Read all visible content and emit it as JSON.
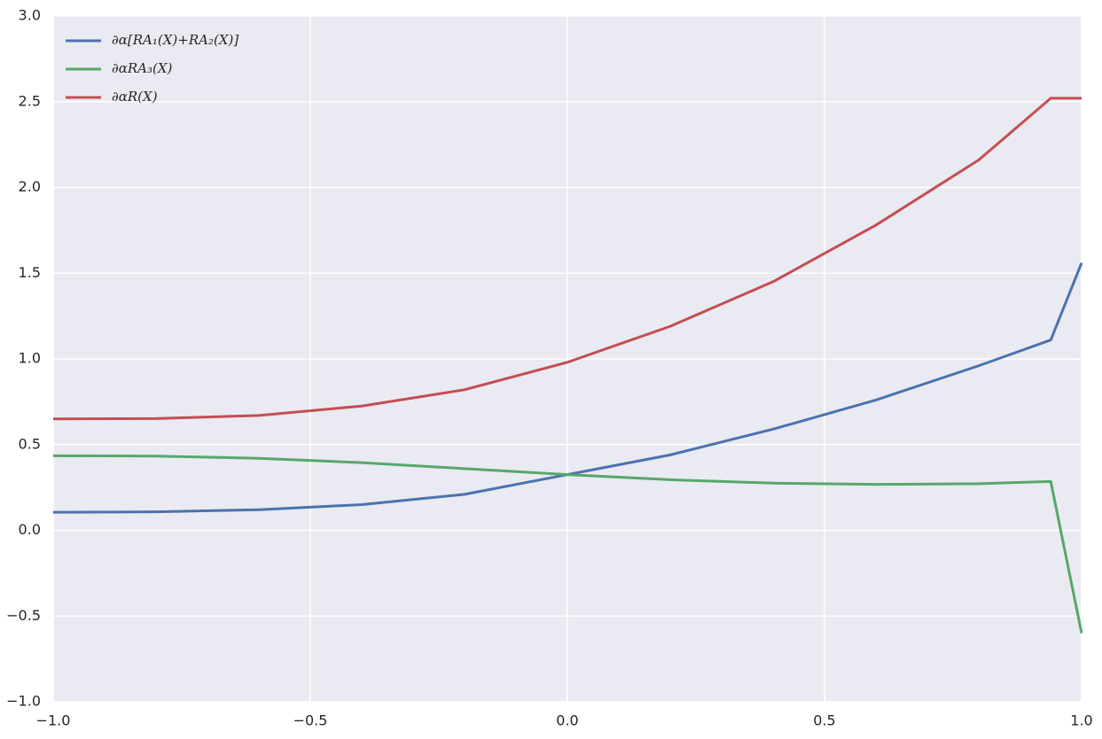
{
  "chart_data": {
    "type": "line",
    "x": [
      -1,
      -0.8,
      -0.6,
      -0.4,
      -0.2,
      0,
      0.2,
      0.4,
      0.6,
      0.8,
      0.94,
      1.0
    ],
    "series": [
      {
        "name": "∂α[RA₁(X)+RA₂(X)]",
        "color": "#4c72b0",
        "values": [
          0.105,
          0.108,
          0.12,
          0.15,
          0.21,
          0.325,
          0.44,
          0.59,
          0.76,
          0.96,
          1.11,
          1.56
        ]
      },
      {
        "name": "∂αRA₃(X)",
        "color": "#55a868",
        "values": [
          0.435,
          0.433,
          0.42,
          0.395,
          0.36,
          0.325,
          0.295,
          0.275,
          0.268,
          0.272,
          0.285,
          -0.6
        ]
      },
      {
        "name": "∂αR(X)",
        "color": "#c44e52",
        "values": [
          0.65,
          0.652,
          0.67,
          0.725,
          0.82,
          0.98,
          1.19,
          1.45,
          1.78,
          2.16,
          2.52,
          2.52
        ]
      }
    ],
    "xlim": [
      -1,
      1
    ],
    "xticks": [
      {
        "value": -1,
        "label": "−1.0"
      },
      {
        "value": -0.5,
        "label": "−0.5"
      },
      {
        "value": 0,
        "label": "0.0"
      },
      {
        "value": 0.5,
        "label": "0.5"
      },
      {
        "value": 1,
        "label": "1.0"
      }
    ],
    "ylim": [
      -1,
      3
    ],
    "yticks": [
      {
        "value": -1,
        "label": "−1.0"
      },
      {
        "value": -0.5,
        "label": "−0.5"
      },
      {
        "value": 0,
        "label": "0.0"
      },
      {
        "value": 0.5,
        "label": "0.5"
      },
      {
        "value": 1,
        "label": "1.0"
      },
      {
        "value": 1.5,
        "label": "1.5"
      },
      {
        "value": 2,
        "label": "2.0"
      },
      {
        "value": 2.5,
        "label": "2.5"
      },
      {
        "value": 3,
        "label": "3.0"
      }
    ],
    "grid": true,
    "legend": "upper left"
  }
}
